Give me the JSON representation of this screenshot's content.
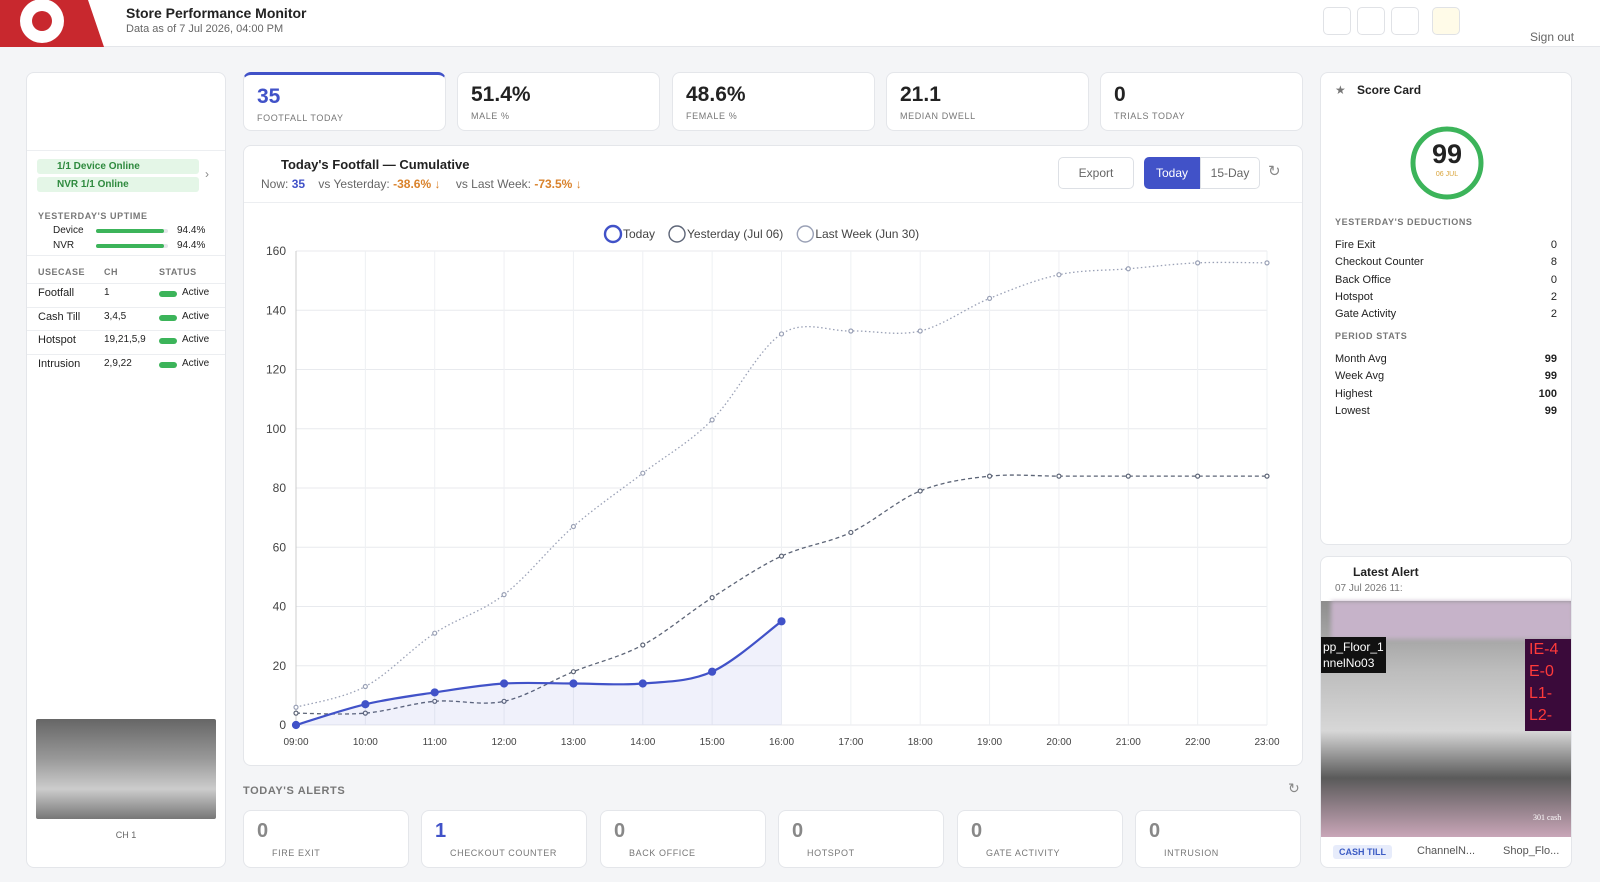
{
  "header": {
    "title": "Store Performance Monitor",
    "subtitle": "Data as of 7 Jul 2026, 04:00 PM",
    "sign_out": "Sign out"
  },
  "left_panel": {
    "status": [
      "1/1 Device Online",
      "NVR 1/1 Online"
    ],
    "uptime": {
      "title": "YESTERDAY'S UPTIME",
      "rows": [
        {
          "name": "Device",
          "value": 94.4,
          "label": "94.4%"
        },
        {
          "name": "NVR",
          "value": 94.4,
          "label": "94.4%"
        }
      ]
    },
    "table": {
      "headers": [
        "USECASE",
        "CH",
        "STATUS"
      ],
      "rows": [
        [
          "Footfall",
          "1",
          "Active"
        ],
        [
          "Cash Till",
          "3,4,5",
          "Active"
        ],
        [
          "Hotspot",
          "19,21,5,9",
          "Active"
        ],
        [
          "Intrusion",
          "2,9,22",
          "Active"
        ]
      ]
    },
    "camera_caption": "CH 1"
  },
  "kpis": [
    {
      "value": "35",
      "label": "FOOTFALL TODAY"
    },
    {
      "value": "51.4%",
      "label": "MALE %"
    },
    {
      "value": "48.6%",
      "label": "FEMALE %"
    },
    {
      "value": "21.1",
      "label": "MEDIAN DWELL"
    },
    {
      "value": "0",
      "label": "TRIALS TODAY"
    }
  ],
  "chart_panel": {
    "title": "Today's Footfall — Cumulative",
    "now_label": "Now:",
    "now_value": "35",
    "vs_yesterday_label": "vs Yesterday:",
    "vs_yesterday_value": "-38.6%",
    "vs_last_week_label": "vs Last Week:",
    "vs_last_week_value": "-73.5%",
    "buttons": [
      "Export",
      "Today",
      "15-Day"
    ]
  },
  "chart_data": {
    "type": "line",
    "categories": [
      "09:00",
      "10:00",
      "11:00",
      "12:00",
      "13:00",
      "14:00",
      "15:00",
      "16:00",
      "17:00",
      "18:00",
      "19:00",
      "20:00",
      "21:00",
      "22:00",
      "23:00"
    ],
    "series": [
      {
        "name": "Today",
        "color": "#4152c8",
        "line_style": "solid",
        "fill": true,
        "values": [
          0,
          7,
          11,
          14,
          14,
          14,
          18,
          35,
          null,
          null,
          null,
          null,
          null,
          null,
          null
        ]
      },
      {
        "name": "Yesterday (Jul 06)",
        "color": "#5d6577",
        "line_style": "dashed",
        "fill": false,
        "values": [
          4,
          4,
          8,
          8,
          18,
          27,
          43,
          57,
          65,
          79,
          84,
          84,
          84,
          84,
          84
        ]
      },
      {
        "name": "Last Week (Jun 30)",
        "color": "#9aa1b6",
        "line_style": "dotted",
        "fill": false,
        "values": [
          6,
          13,
          31,
          44,
          67,
          85,
          103,
          132,
          133,
          133,
          144,
          152,
          154,
          156,
          156
        ]
      }
    ],
    "ylim": [
      0,
      160
    ],
    "yticks": [
      0,
      20,
      40,
      60,
      80,
      100,
      120,
      140,
      160
    ],
    "grid": true,
    "legend": "top"
  },
  "alerts": {
    "title": "TODAY'S ALERTS",
    "items": [
      {
        "value": "0",
        "label": "FIRE EXIT"
      },
      {
        "value": "1",
        "label": "CHECKOUT COUNTER"
      },
      {
        "value": "0",
        "label": "BACK OFFICE"
      },
      {
        "value": "0",
        "label": "HOTSPOT"
      },
      {
        "value": "0",
        "label": "GATE ACTIVITY"
      },
      {
        "value": "0",
        "label": "INTRUSION"
      }
    ]
  },
  "score_card": {
    "title": "Score Card",
    "score": "99",
    "date": "06 JUL",
    "deductions_title": "YESTERDAY'S DEDUCTIONS",
    "deductions": [
      [
        "Fire Exit",
        "0"
      ],
      [
        "Checkout Counter",
        "8"
      ],
      [
        "Back Office",
        "0"
      ],
      [
        "Hotspot",
        "2"
      ],
      [
        "Gate Activity",
        "2"
      ]
    ],
    "period_title": "PERIOD STATS",
    "period": [
      [
        "Month Avg",
        "99"
      ],
      [
        "Week Avg",
        "99"
      ],
      [
        "Highest",
        "100"
      ],
      [
        "Lowest",
        "99"
      ]
    ]
  },
  "latest_alert": {
    "title": "Latest Alert",
    "time": "07 Jul 2026 11:",
    "overlay_left": [
      "pp_Floor_1",
      "nnelNo03"
    ],
    "overlay_right": [
      "IE-4",
      "E-0",
      "L1-",
      "L2-"
    ],
    "overlay_stamp": "301 cash",
    "tag": "CASH TILL",
    "channel": "ChannelN...",
    "location": "Shop_Flo..."
  }
}
